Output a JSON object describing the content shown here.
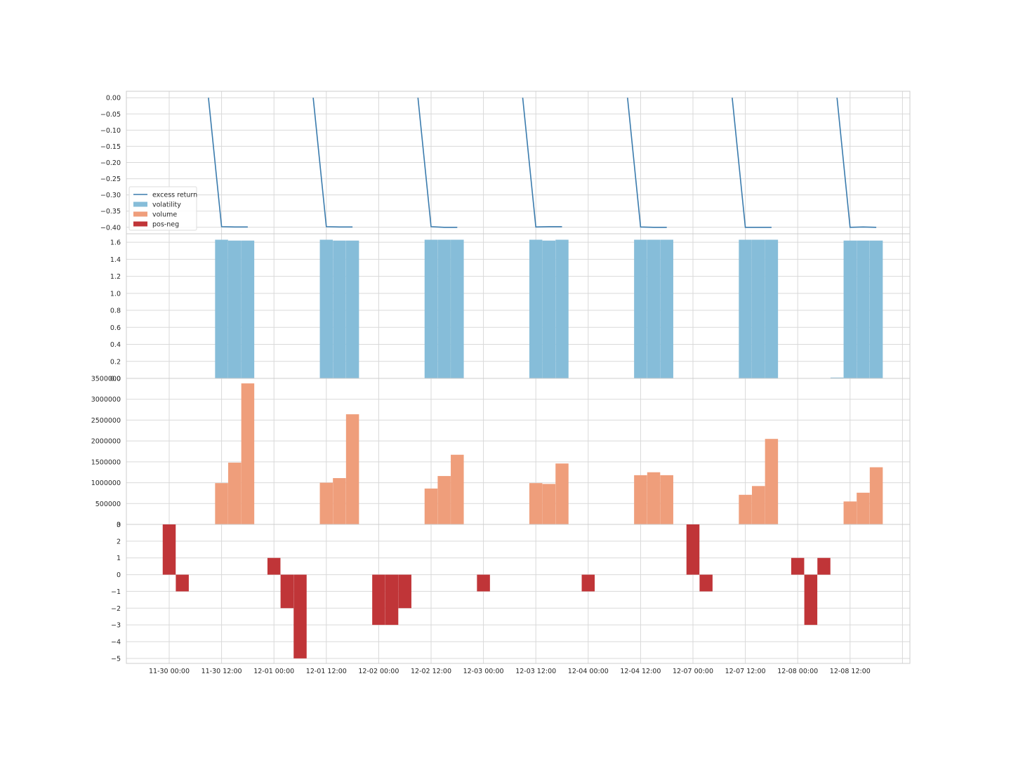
{
  "chart_data": {
    "type": "multi-panel",
    "x": [
      "11-30 06:00",
      "11-30 09:00",
      "11-30 12:00",
      "11-30 15:00",
      "12-01 00:00",
      "12-01 03:00",
      "12-01 06:00",
      "12-01 09:00",
      "12-01 12:00",
      "12-01 15:00",
      "12-02 00:00",
      "12-02 03:00",
      "12-02 06:00",
      "12-02 09:00",
      "12-02 12:00",
      "12-02 15:00",
      "12-03 06:00",
      "12-03 09:00",
      "12-03 12:00",
      "12-03 15:00",
      "12-04 00:00",
      "12-04 06:00",
      "12-04 09:00",
      "12-04 12:00",
      "12-04 15:00",
      "12-07 00:00",
      "12-07 03:00",
      "12-07 06:00",
      "12-07 09:00",
      "12-07 12:00",
      "12-07 15:00",
      "12-08 00:00",
      "12-08 03:00",
      "12-08 06:00",
      "12-08 09:00",
      "12-08 12:00",
      "12-08 15:00"
    ],
    "xticks": [
      "11-30 00:00",
      "11-30 12:00",
      "12-01 00:00",
      "12-01 12:00",
      "12-02 00:00",
      "12-02 12:00",
      "12-03 00:00",
      "12-03 12:00",
      "12-04 00:00",
      "12-04 12:00",
      "12-07 00:00",
      "12-07 12:00",
      "12-08 00:00",
      "12-08 12:00"
    ],
    "legend": {
      "position": "right-of-center-left",
      "entries": [
        "excess return",
        "volatility",
        "volume",
        "pos-neg"
      ]
    },
    "grid": true,
    "colors": {
      "excess_return": "#3a7bad",
      "volatility": "#86bdd9",
      "volume": "#ef9e7b",
      "pos_neg": "#c03538",
      "grid": "#d9d9d9",
      "frame": "#cccccc"
    },
    "panels": [
      {
        "key": "excess_return",
        "series_name": "excess return",
        "kind": "line",
        "ylim": [
          -0.42,
          0.02
        ],
        "yticks": [
          "0.00",
          "−0.05",
          "−0.10",
          "−0.15",
          "−0.20",
          "−0.25",
          "−0.30",
          "−0.35",
          "−0.40"
        ],
        "yvals": [
          0.0,
          -0.05,
          -0.1,
          -0.15,
          -0.2,
          -0.25,
          -0.3,
          -0.35,
          -0.4
        ],
        "segments": [
          {
            "x": [
              "11-30 09:00",
              "11-30 12:00",
              "11-30 15:00",
              "11-30 18:00"
            ],
            "y": [
              0.0,
              -0.398,
              -0.399,
              -0.399
            ]
          },
          {
            "x": [
              "12-01 09:00",
              "12-01 12:00",
              "12-01 15:00",
              "12-01 18:00"
            ],
            "y": [
              0.0,
              -0.398,
              -0.399,
              -0.399
            ]
          },
          {
            "x": [
              "12-02 09:00",
              "12-02 12:00",
              "12-02 15:00",
              "12-02 18:00"
            ],
            "y": [
              0.0,
              -0.398,
              -0.4,
              -0.4
            ]
          },
          {
            "x": [
              "12-03 09:00",
              "12-03 12:00",
              "12-03 15:00",
              "12-03 18:00"
            ],
            "y": [
              0.0,
              -0.399,
              -0.398,
              -0.398
            ]
          },
          {
            "x": [
              "12-04 09:00",
              "12-04 12:00",
              "12-04 15:00",
              "12-04 18:00"
            ],
            "y": [
              0.0,
              -0.399,
              -0.4,
              -0.4
            ]
          },
          {
            "x": [
              "12-07 09:00",
              "12-07 12:00",
              "12-07 15:00",
              "12-07 18:00"
            ],
            "y": [
              0.0,
              -0.4,
              -0.4,
              -0.4
            ]
          },
          {
            "x": [
              "12-08 09:00",
              "12-08 12:00",
              "12-08 15:00",
              "12-08 18:00"
            ],
            "y": [
              0.0,
              -0.4,
              -0.399,
              -0.4
            ]
          }
        ]
      },
      {
        "key": "volatility",
        "series_name": "volatility",
        "kind": "bar",
        "ylim": [
          0,
          1.7
        ],
        "yticks": [
          "0.0",
          "0.2",
          "0.4",
          "0.6",
          "0.8",
          "1.0",
          "1.2",
          "1.4",
          "1.6"
        ],
        "yvals": [
          0.0,
          0.2,
          0.4,
          0.6,
          0.8,
          1.0,
          1.2,
          1.4,
          1.6
        ],
        "bars": [
          {
            "x": "11-30 12:00",
            "y": 1.63
          },
          {
            "x": "11-30 15:00",
            "y": 1.62
          },
          {
            "x": "11-30 18:00",
            "y": 1.62
          },
          {
            "x": "12-01 12:00",
            "y": 1.63
          },
          {
            "x": "12-01 15:00",
            "y": 1.62
          },
          {
            "x": "12-01 18:00",
            "y": 1.62
          },
          {
            "x": "12-02 12:00",
            "y": 1.63
          },
          {
            "x": "12-02 15:00",
            "y": 1.63
          },
          {
            "x": "12-02 18:00",
            "y": 1.63
          },
          {
            "x": "12-03 12:00",
            "y": 1.63
          },
          {
            "x": "12-03 15:00",
            "y": 1.62
          },
          {
            "x": "12-03 18:00",
            "y": 1.63
          },
          {
            "x": "12-04 12:00",
            "y": 1.63
          },
          {
            "x": "12-04 15:00",
            "y": 1.63
          },
          {
            "x": "12-04 18:00",
            "y": 1.63
          },
          {
            "x": "12-07 12:00",
            "y": 1.63
          },
          {
            "x": "12-07 15:00",
            "y": 1.63
          },
          {
            "x": "12-07 18:00",
            "y": 1.63
          },
          {
            "x": "12-08 09:00",
            "y": 0.01
          },
          {
            "x": "12-08 12:00",
            "y": 1.62
          },
          {
            "x": "12-08 15:00",
            "y": 1.62
          },
          {
            "x": "12-08 18:00",
            "y": 1.62
          }
        ]
      },
      {
        "key": "volume",
        "series_name": "volume",
        "kind": "bar",
        "ylim": [
          0,
          3500000
        ],
        "yticks": [
          "0",
          "500000",
          "1000000",
          "1500000",
          "2000000",
          "2500000",
          "3000000",
          "3500000"
        ],
        "yvals": [
          0,
          500000,
          1000000,
          1500000,
          2000000,
          2500000,
          3000000,
          3500000
        ],
        "bars": [
          {
            "x": "11-30 12:00",
            "y": 990000
          },
          {
            "x": "11-30 15:00",
            "y": 1480000
          },
          {
            "x": "11-30 18:00",
            "y": 3380000
          },
          {
            "x": "12-01 12:00",
            "y": 1000000
          },
          {
            "x": "12-01 15:00",
            "y": 1110000
          },
          {
            "x": "12-01 18:00",
            "y": 2640000
          },
          {
            "x": "12-02 12:00",
            "y": 860000
          },
          {
            "x": "12-02 15:00",
            "y": 1160000
          },
          {
            "x": "12-02 18:00",
            "y": 1670000
          },
          {
            "x": "12-03 12:00",
            "y": 990000
          },
          {
            "x": "12-03 15:00",
            "y": 970000
          },
          {
            "x": "12-03 18:00",
            "y": 1460000
          },
          {
            "x": "12-04 12:00",
            "y": 1180000
          },
          {
            "x": "12-04 15:00",
            "y": 1250000
          },
          {
            "x": "12-04 18:00",
            "y": 1180000
          },
          {
            "x": "12-07 12:00",
            "y": 710000
          },
          {
            "x": "12-07 15:00",
            "y": 920000
          },
          {
            "x": "12-07 18:00",
            "y": 2050000
          },
          {
            "x": "12-08 12:00",
            "y": 550000
          },
          {
            "x": "12-08 15:00",
            "y": 760000
          },
          {
            "x": "12-08 18:00",
            "y": 1370000
          }
        ]
      },
      {
        "key": "pos_neg",
        "series_name": "pos-neg",
        "kind": "bar",
        "ylim": [
          -5.3,
          3.0
        ],
        "yticks": [
          "−5",
          "−4",
          "−3",
          "−2",
          "−1",
          "0",
          "1",
          "2",
          "3"
        ],
        "yvals": [
          -5,
          -4,
          -3,
          -2,
          -1,
          0,
          1,
          2,
          3
        ],
        "bars": [
          {
            "x": "11-30 00:00",
            "y": 3
          },
          {
            "x": "11-30 03:00",
            "y": -1
          },
          {
            "x": "12-01 00:00",
            "y": 1
          },
          {
            "x": "12-01 03:00",
            "y": -2
          },
          {
            "x": "12-01 06:00",
            "y": -5
          },
          {
            "x": "12-02 00:00",
            "y": -3
          },
          {
            "x": "12-02 03:00",
            "y": -3
          },
          {
            "x": "12-02 06:00",
            "y": -2
          },
          {
            "x": "12-03 00:00",
            "y": -1
          },
          {
            "x": "12-04 00:00",
            "y": -1
          },
          {
            "x": "12-07 00:00",
            "y": 3
          },
          {
            "x": "12-07 03:00",
            "y": -1
          },
          {
            "x": "12-08 00:00",
            "y": 1
          },
          {
            "x": "12-08 03:00",
            "y": -3
          },
          {
            "x": "12-08 06:00",
            "y": 1
          }
        ]
      }
    ]
  }
}
